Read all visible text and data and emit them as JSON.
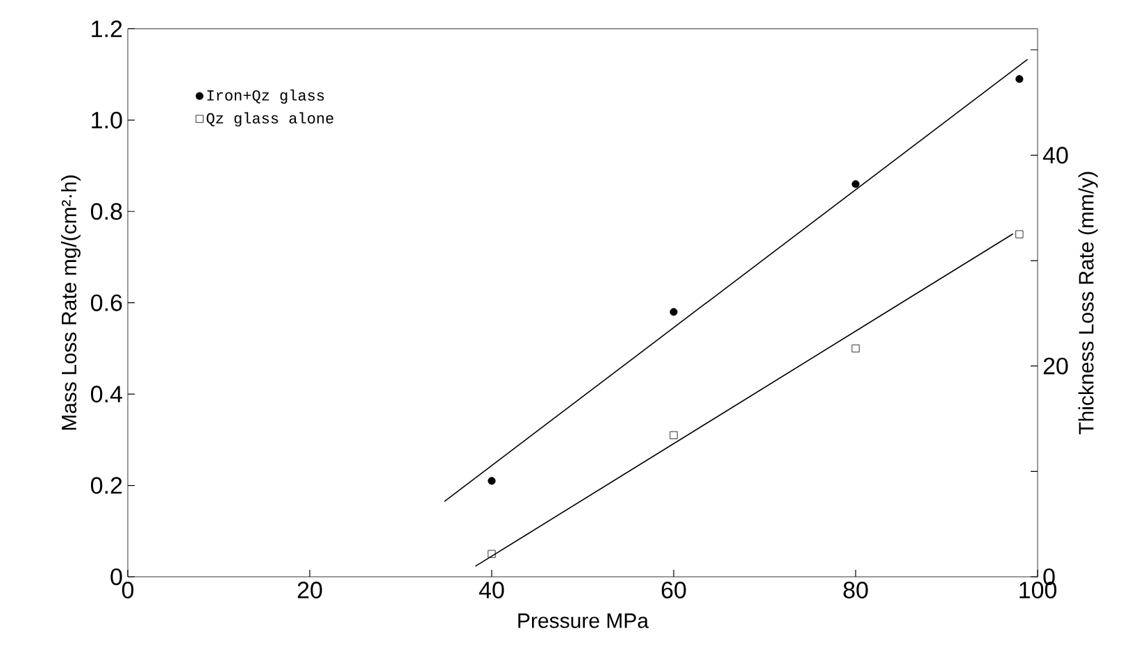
{
  "chart_data": {
    "type": "scatter",
    "xlabel": "Pressure MPa",
    "ylabel": "Mass Loss Rate    mg/(cm²·h)",
    "y2label": "Thickness Loss Rate (mm/y)",
    "xlim": [
      0,
      100
    ],
    "ylim": [
      0,
      1.2
    ],
    "y2lim": [
      0,
      52
    ],
    "xticks": [
      0,
      20,
      40,
      60,
      80,
      100
    ],
    "yticks": [
      0,
      {
        "value": 0.2,
        "label": "0.2"
      },
      {
        "value": 0.4,
        "label": "0.4"
      },
      {
        "value": 0.6,
        "label": "0.6"
      },
      {
        "value": 0.8,
        "label": "0.8"
      },
      {
        "value": 1.0,
        "label": "1.0"
      },
      {
        "value": 1.2,
        "label": "1.2"
      }
    ],
    "y2ticks": [
      0,
      {
        "value": 10,
        "label": null
      },
      20,
      {
        "value": 30,
        "label": null
      },
      40,
      {
        "value": 50,
        "label": null
      }
    ],
    "legend": "top left",
    "grid": false,
    "series": [
      {
        "name": "Iron+Qz glass",
        "marker": "circle",
        "color": "#000000",
        "x": [
          40,
          60,
          80,
          98
        ],
        "values": [
          0.21,
          0.58,
          0.86,
          1.09
        ]
      },
      {
        "name": "Qz glass alone",
        "marker": "square",
        "color": "#000000",
        "x": [
          40,
          60,
          80,
          98
        ],
        "values": [
          0.05,
          0.31,
          0.5,
          0.75
        ]
      },
      {
        "type": "line",
        "marker": "none",
        "line_style": "solid",
        "color": "#000000",
        "x": [
          34.8,
          98.9
        ],
        "values": [
          0.165,
          1.133
        ]
      },
      {
        "type": "line",
        "marker": "none",
        "line_style": "solid",
        "color": "#000000",
        "x": [
          38.2,
          97.3
        ],
        "values": [
          0.023,
          0.751
        ]
      }
    ]
  }
}
